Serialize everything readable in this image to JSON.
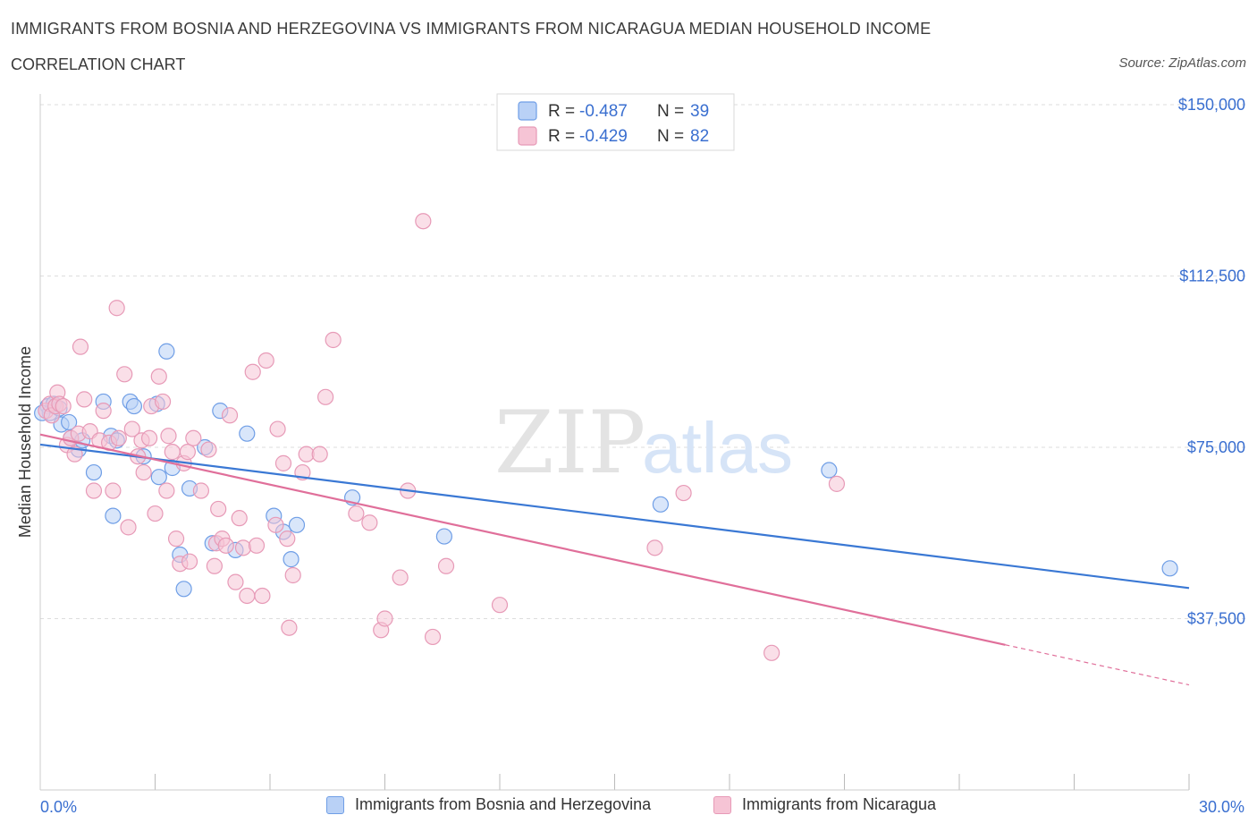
{
  "header": {
    "title": "IMMIGRANTS FROM BOSNIA AND HERZEGOVINA VS IMMIGRANTS FROM NICARAGUA MEDIAN HOUSEHOLD INCOME",
    "subtitle": "CORRELATION CHART",
    "source": "Source: ZipAtlas.com"
  },
  "watermark": {
    "zip": "ZIP",
    "atlas": "atlas"
  },
  "colors": {
    "blue": "#3a78d4",
    "blue_fill": "#b9d1f6",
    "pink": "#e06f9a",
    "pink_fill": "#f6c4d5",
    "axis_label": "#3a6fd0",
    "grid": "#dddddd"
  },
  "stats_legend": [
    {
      "r_label": "R =",
      "r_value": "-0.487",
      "n_label": "N =",
      "n_value": "39"
    },
    {
      "r_label": "R =",
      "r_value": "-0.429",
      "n_label": "N =",
      "n_value": "82"
    }
  ],
  "chart_data": {
    "type": "scatter",
    "title": "IMMIGRANTS FROM BOSNIA AND HERZEGOVINA VS IMMIGRANTS FROM NICARAGUA MEDIAN HOUSEHOLD INCOME",
    "ylabel": "Median Household Income",
    "xlim": [
      0,
      30
    ],
    "ylim": [
      0,
      150000
    ],
    "x_tick_labels": [
      {
        "value": 0,
        "label": "0.0%"
      },
      {
        "value": 30,
        "label": "30.0%"
      }
    ],
    "y_ticks": [
      {
        "value": 150000,
        "label": "$150,000"
      },
      {
        "value": 112500,
        "label": "$112,500"
      },
      {
        "value": 75000,
        "label": "$75,000"
      },
      {
        "value": 37500,
        "label": "$37,500"
      }
    ],
    "grid": "horizontal dashed",
    "series": [
      {
        "name": "Immigrants from Bosnia and Herzegovina",
        "color": "#3a78d4",
        "trend": {
          "x0": 0,
          "y0": 75600,
          "x1": 30,
          "y1": 44200,
          "dashed_from_x": null
        },
        "points": [
          [
            0.2,
            84000
          ],
          [
            0.25,
            82500
          ],
          [
            0.35,
            84500
          ],
          [
            0.5,
            83500
          ],
          [
            0.55,
            80000
          ],
          [
            0.75,
            80500
          ],
          [
            0.8,
            77000
          ],
          [
            1.0,
            74500
          ],
          [
            1.1,
            76500
          ],
          [
            1.4,
            69500
          ],
          [
            1.65,
            85000
          ],
          [
            1.85,
            77500
          ],
          [
            1.9,
            60000
          ],
          [
            2.0,
            76500
          ],
          [
            2.35,
            85000
          ],
          [
            2.45,
            84000
          ],
          [
            2.7,
            73000
          ],
          [
            3.05,
            84500
          ],
          [
            3.1,
            68500
          ],
          [
            3.3,
            96000
          ],
          [
            3.45,
            70500
          ],
          [
            3.65,
            51500
          ],
          [
            3.75,
            44000
          ],
          [
            3.9,
            66000
          ],
          [
            4.3,
            75000
          ],
          [
            4.5,
            54000
          ],
          [
            4.7,
            83000
          ],
          [
            5.1,
            52500
          ],
          [
            5.4,
            78000
          ],
          [
            6.1,
            60000
          ],
          [
            6.35,
            56500
          ],
          [
            6.55,
            50500
          ],
          [
            6.7,
            58000
          ],
          [
            8.15,
            64000
          ],
          [
            10.55,
            55500
          ],
          [
            16.2,
            62500
          ],
          [
            20.6,
            70000
          ],
          [
            29.5,
            48500
          ],
          [
            0.05,
            82500
          ]
        ]
      },
      {
        "name": "Immigrants from Nicaragua",
        "color": "#e06f9a",
        "trend": {
          "x0": 0,
          "y0": 77800,
          "x1": 30,
          "y1": 23000,
          "dashed_from_x": 25.2
        },
        "points": [
          [
            0.15,
            83000
          ],
          [
            0.25,
            84500
          ],
          [
            0.3,
            82000
          ],
          [
            0.4,
            84000
          ],
          [
            0.45,
            87000
          ],
          [
            0.5,
            84500
          ],
          [
            0.6,
            84000
          ],
          [
            0.7,
            75500
          ],
          [
            0.8,
            77000
          ],
          [
            0.9,
            73500
          ],
          [
            1.0,
            78000
          ],
          [
            1.05,
            97000
          ],
          [
            1.15,
            85500
          ],
          [
            1.3,
            78500
          ],
          [
            1.4,
            65500
          ],
          [
            1.55,
            76500
          ],
          [
            1.65,
            83000
          ],
          [
            1.8,
            76000
          ],
          [
            1.9,
            65500
          ],
          [
            2.0,
            105500
          ],
          [
            2.05,
            77000
          ],
          [
            2.2,
            91000
          ],
          [
            2.3,
            57500
          ],
          [
            2.4,
            79000
          ],
          [
            2.55,
            73000
          ],
          [
            2.65,
            76500
          ],
          [
            2.7,
            69500
          ],
          [
            2.85,
            77000
          ],
          [
            2.9,
            84000
          ],
          [
            3.0,
            60500
          ],
          [
            3.1,
            90500
          ],
          [
            3.2,
            85000
          ],
          [
            3.3,
            65500
          ],
          [
            3.35,
            77500
          ],
          [
            3.45,
            74000
          ],
          [
            3.55,
            55000
          ],
          [
            3.65,
            49500
          ],
          [
            3.75,
            71500
          ],
          [
            3.85,
            74000
          ],
          [
            3.9,
            50000
          ],
          [
            4.0,
            77000
          ],
          [
            4.2,
            65500
          ],
          [
            4.4,
            74500
          ],
          [
            4.55,
            49000
          ],
          [
            4.6,
            54000
          ],
          [
            4.65,
            61500
          ],
          [
            4.75,
            55000
          ],
          [
            4.85,
            53500
          ],
          [
            4.95,
            82000
          ],
          [
            5.1,
            45500
          ],
          [
            5.2,
            59500
          ],
          [
            5.3,
            53000
          ],
          [
            5.4,
            42500
          ],
          [
            5.55,
            91500
          ],
          [
            5.65,
            53500
          ],
          [
            5.8,
            42500
          ],
          [
            5.9,
            94000
          ],
          [
            6.15,
            58000
          ],
          [
            6.2,
            79000
          ],
          [
            6.35,
            71500
          ],
          [
            6.45,
            55000
          ],
          [
            6.5,
            35500
          ],
          [
            6.6,
            47000
          ],
          [
            6.85,
            69500
          ],
          [
            6.95,
            73500
          ],
          [
            7.3,
            73500
          ],
          [
            7.45,
            86000
          ],
          [
            7.65,
            98500
          ],
          [
            8.25,
            60500
          ],
          [
            8.6,
            58500
          ],
          [
            8.9,
            35000
          ],
          [
            9.0,
            37500
          ],
          [
            9.4,
            46500
          ],
          [
            9.6,
            65500
          ],
          [
            10.0,
            124500
          ],
          [
            10.25,
            33500
          ],
          [
            10.6,
            49000
          ],
          [
            12.0,
            40500
          ],
          [
            16.05,
            53000
          ],
          [
            16.8,
            65000
          ],
          [
            19.1,
            30000
          ],
          [
            20.8,
            67000
          ]
        ]
      }
    ]
  },
  "bottom_legend": [
    {
      "label": "Immigrants from Bosnia and Herzegovina"
    },
    {
      "label": "Immigrants from Nicaragua"
    }
  ]
}
